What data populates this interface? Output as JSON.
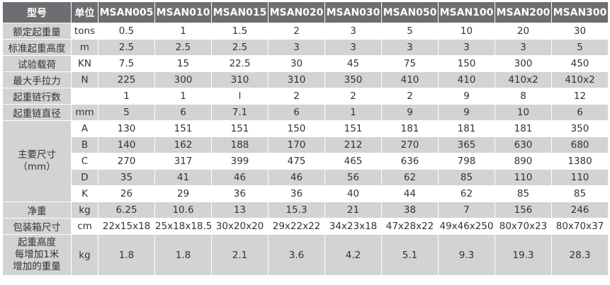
{
  "header": {
    "model": "型号",
    "unit": "单位",
    "models": [
      "MSAN005",
      "MSAN010",
      "MSAN015",
      "MSAN020",
      "MSAN030",
      "MSAN050",
      "MSAN100",
      "MSAN200",
      "MSAN300"
    ]
  },
  "rows": [
    {
      "label": "额定起重量",
      "unit": "tons",
      "values": [
        "0.5",
        "1",
        "1.5",
        "2",
        "3",
        "5",
        "10",
        "20",
        "30"
      ]
    },
    {
      "label": "标准起重高度",
      "unit": "m",
      "values": [
        "2.5",
        "2.5",
        "2.5",
        "3",
        "3",
        "3",
        "3",
        "3",
        "5"
      ]
    },
    {
      "label": "试验载荷",
      "unit": "KN",
      "values": [
        "7.5",
        "15",
        "22.5",
        "30",
        "45",
        "75",
        "150",
        "300",
        "450"
      ]
    },
    {
      "label": "最大手拉力",
      "unit": "N",
      "values": [
        "225",
        "300",
        "310",
        "310",
        "350",
        "410",
        "410",
        "410x2",
        "410x2"
      ]
    },
    {
      "label": "起重链行数",
      "unit": "",
      "values": [
        "1",
        "1",
        "l",
        "2",
        "2",
        "2",
        "9",
        "8",
        "12"
      ]
    },
    {
      "label": "起重链直径",
      "unit": "mm",
      "values": [
        "5",
        "6",
        "7.1",
        "6",
        "1",
        "9",
        "9",
        "10",
        "6"
      ]
    }
  ],
  "dimensions": {
    "label_line1": "主要尺寸",
    "label_line2": "（mm）",
    "rows": [
      {
        "unit": "A",
        "values": [
          "130",
          "151",
          "151",
          "150",
          "151",
          "181",
          "181",
          "181",
          "350"
        ]
      },
      {
        "unit": "B",
        "values": [
          "140",
          "162",
          "188",
          "170",
          "212",
          "270",
          "365",
          "630",
          "680"
        ]
      },
      {
        "unit": "C",
        "values": [
          "270",
          "317",
          "399",
          "475",
          "465",
          "636",
          "798",
          "890",
          "1380"
        ]
      },
      {
        "unit": "D",
        "values": [
          "35",
          "41",
          "46",
          "46",
          "56",
          "62",
          "85",
          "110",
          "110"
        ]
      },
      {
        "unit": "K",
        "values": [
          "26",
          "29",
          "36",
          "36",
          "40",
          "44",
          "62",
          "85",
          "85"
        ]
      }
    ]
  },
  "rows2": [
    {
      "label": "净重",
      "unit": "kg",
      "values": [
        "6.25",
        "10.6",
        "13",
        "15.3",
        "21",
        "38",
        "7",
        "156",
        "246"
      ]
    },
    {
      "label": "包装箱尺寸",
      "unit": "cm",
      "values": [
        "22x15x18",
        "25x18x18.5",
        "30x20x20",
        "29x22x22",
        "34x23x18",
        "47x28x22",
        "49x46x250",
        "80x70x23",
        "80x70x37"
      ]
    }
  ],
  "last_row": {
    "label_line1": "起重高度",
    "label_line2": "每增加1米",
    "label_line3": "增加的重量",
    "unit": "kg",
    "values": [
      "1.8",
      "1.8",
      "2.1",
      "3.6",
      "4.2",
      "5.1",
      "9.3",
      "19.3",
      "28.3"
    ]
  },
  "colors": {
    "header_bg": "#6d6e71",
    "label_bg": "#d1d3d4",
    "stripe_bg": "#d1d3d4"
  }
}
